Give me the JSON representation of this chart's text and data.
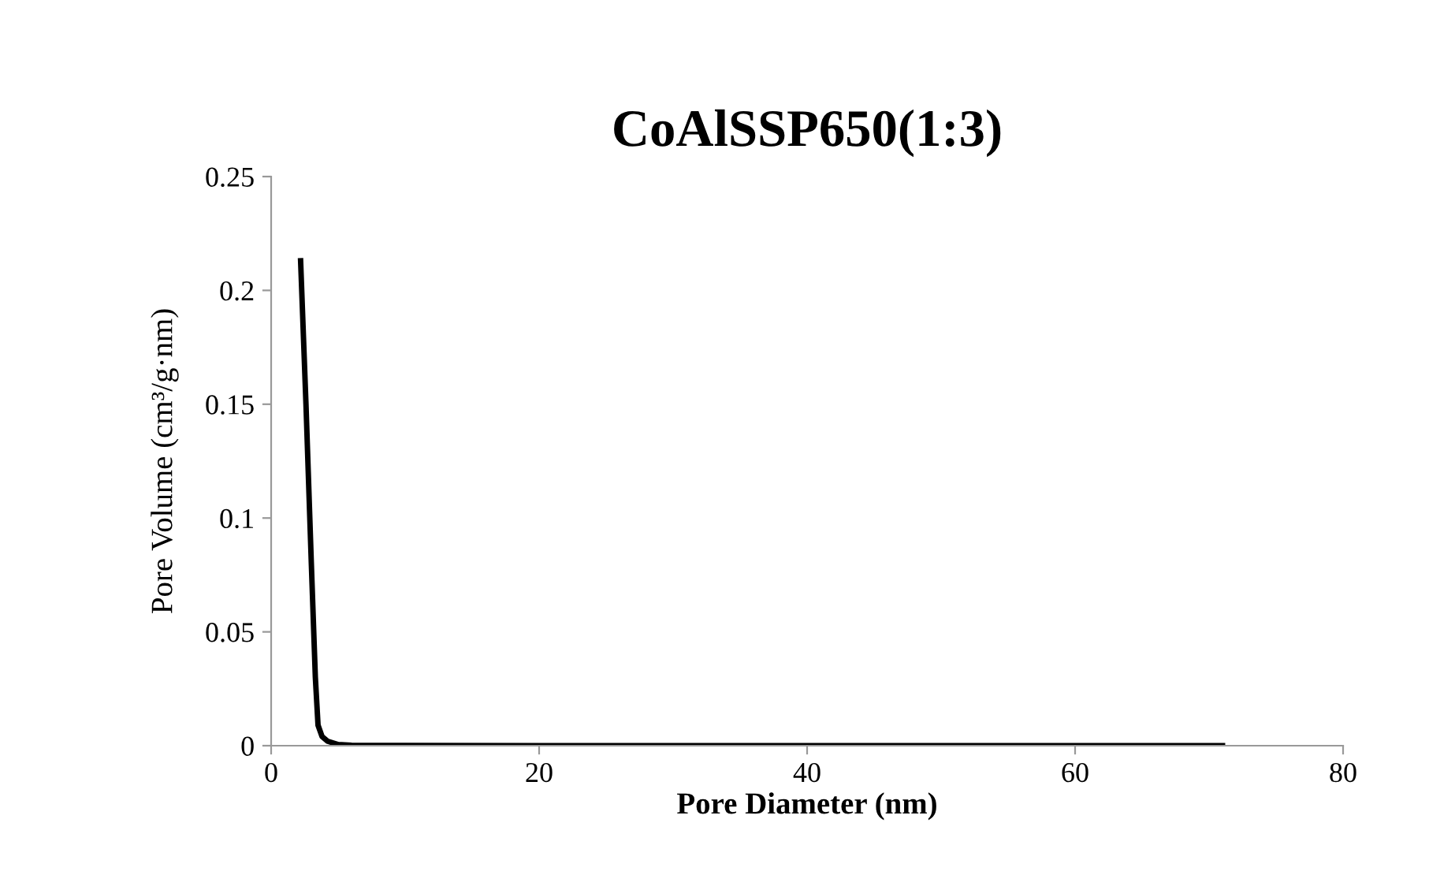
{
  "chart_data": {
    "type": "line",
    "title": "CoAlSSP650(1:3)",
    "xlabel": "Pore Diameter (nm)",
    "ylabel": "Pore Volume (cm³/g·nm)",
    "series": [
      {
        "color": "#000000",
        "x": [
          2.2,
          2.6,
          3.0,
          3.3,
          3.5,
          3.8,
          4.2,
          5.0,
          6.0,
          10,
          20,
          40,
          60,
          71
        ],
        "values": [
          0.213,
          0.15,
          0.08,
          0.03,
          0.009,
          0.004,
          0.002,
          0.0005,
          0.0002,
          0.0001,
          0.0,
          0.0,
          0.0,
          0.0
        ]
      }
    ],
    "xlim": [
      0,
      80
    ],
    "xticks": [
      0,
      20,
      40,
      60,
      80
    ],
    "ylim": [
      0,
      0.25
    ],
    "yticks": [
      0,
      0.05,
      0.1,
      0.15,
      0.2,
      0.25
    ],
    "grid": false,
    "legend": false,
    "marker": "none",
    "line_style": "solid"
  }
}
